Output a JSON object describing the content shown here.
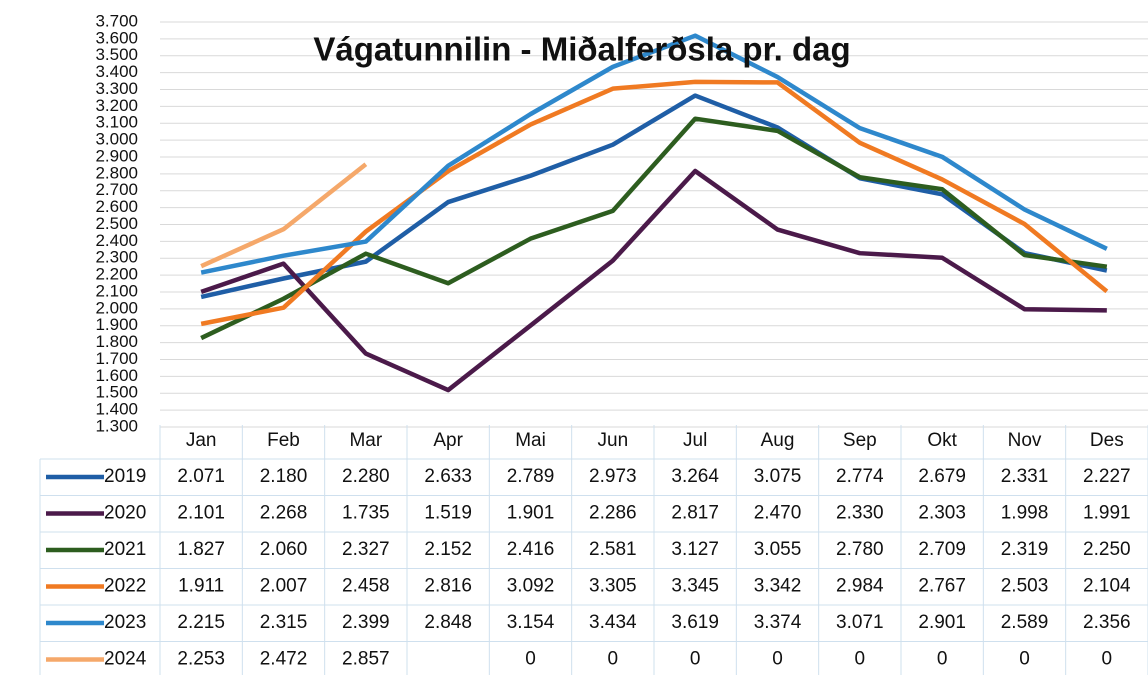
{
  "chart_data": {
    "type": "line",
    "title": "Vágatunnilin - Miðalferðsla pr. dag",
    "categories": [
      "Jan",
      "Feb",
      "Mar",
      "Apr",
      "Mai",
      "Jun",
      "Jul",
      "Aug",
      "Sep",
      "Okt",
      "Nov",
      "Des"
    ],
    "ylim": [
      1300,
      3700
    ],
    "yticks": [
      {
        "value": 1300,
        "label": "1.300"
      },
      {
        "value": 1400,
        "label": "1.400"
      },
      {
        "value": 1500,
        "label": "1.500"
      },
      {
        "value": 1600,
        "label": "1.600"
      },
      {
        "value": 1700,
        "label": "1.700"
      },
      {
        "value": 1800,
        "label": "1.800"
      },
      {
        "value": 1900,
        "label": "1.900"
      },
      {
        "value": 2000,
        "label": "2.000"
      },
      {
        "value": 2100,
        "label": "2.100"
      },
      {
        "value": 2200,
        "label": "2.200"
      },
      {
        "value": 2300,
        "label": "2.300"
      },
      {
        "value": 2400,
        "label": "2.400"
      },
      {
        "value": 2500,
        "label": "2.500"
      },
      {
        "value": 2600,
        "label": "2.600"
      },
      {
        "value": 2700,
        "label": "2.700"
      },
      {
        "value": 2800,
        "label": "2.800"
      },
      {
        "value": 2900,
        "label": "2.900"
      },
      {
        "value": 3000,
        "label": "3.000"
      },
      {
        "value": 3100,
        "label": "3.100"
      },
      {
        "value": 3200,
        "label": "3.200"
      },
      {
        "value": 3300,
        "label": "3.300"
      },
      {
        "value": 3400,
        "label": "3.400"
      },
      {
        "value": 3500,
        "label": "3.500"
      },
      {
        "value": 3600,
        "label": "3.600"
      },
      {
        "value": 3700,
        "label": "3.700"
      }
    ],
    "grid": true,
    "series": [
      {
        "name": "2019",
        "color": "#1f5ea6",
        "values": [
          2071,
          2180,
          2280,
          2633,
          2789,
          2973,
          3264,
          3075,
          2774,
          2679,
          2331,
          2227
        ],
        "value_labels": [
          "2.071",
          "2.180",
          "2.280",
          "2.633",
          "2.789",
          "2.973",
          "3.264",
          "3.075",
          "2.774",
          "2.679",
          "2.331",
          "2.227"
        ]
      },
      {
        "name": "2020",
        "color": "#4b1a4a",
        "values": [
          2101,
          2268,
          1735,
          1519,
          1901,
          2286,
          2817,
          2470,
          2330,
          2303,
          1998,
          1991
        ],
        "value_labels": [
          "2.101",
          "2.268",
          "1.735",
          "1.519",
          "1.901",
          "2.286",
          "2.817",
          "2.470",
          "2.330",
          "2.303",
          "1.998",
          "1.991"
        ]
      },
      {
        "name": "2021",
        "color": "#2d5d1f",
        "values": [
          1827,
          2060,
          2327,
          2152,
          2416,
          2581,
          3127,
          3055,
          2780,
          2709,
          2319,
          2250
        ],
        "value_labels": [
          "1.827",
          "2.060",
          "2.327",
          "2.152",
          "2.416",
          "2.581",
          "3.127",
          "3.055",
          "2.780",
          "2.709",
          "2.319",
          "2.250"
        ]
      },
      {
        "name": "2022",
        "color": "#f07a22",
        "values": [
          1911,
          2007,
          2458,
          2816,
          3092,
          3305,
          3345,
          3342,
          2984,
          2767,
          2503,
          2104
        ],
        "value_labels": [
          "1.911",
          "2.007",
          "2.458",
          "2.816",
          "3.092",
          "3.305",
          "3.345",
          "3.342",
          "2.984",
          "2.767",
          "2.503",
          "2.104"
        ]
      },
      {
        "name": "2023",
        "color": "#2e88cc",
        "values": [
          2215,
          2315,
          2399,
          2848,
          3154,
          3434,
          3619,
          3374,
          3071,
          2901,
          2589,
          2356
        ],
        "value_labels": [
          "2.215",
          "2.315",
          "2.399",
          "2.848",
          "3.154",
          "3.434",
          "3.619",
          "3.374",
          "3.071",
          "2.901",
          "2.589",
          "2.356"
        ]
      },
      {
        "name": "2024",
        "color": "#f5a86a",
        "values": [
          2253,
          2472,
          2857,
          null,
          0,
          0,
          0,
          0,
          0,
          0,
          0,
          0
        ],
        "value_labels": [
          "2.253",
          "2.472",
          "2.857",
          null,
          "0",
          "0",
          "0",
          "0",
          "0",
          "0",
          "0",
          "0"
        ]
      }
    ]
  }
}
